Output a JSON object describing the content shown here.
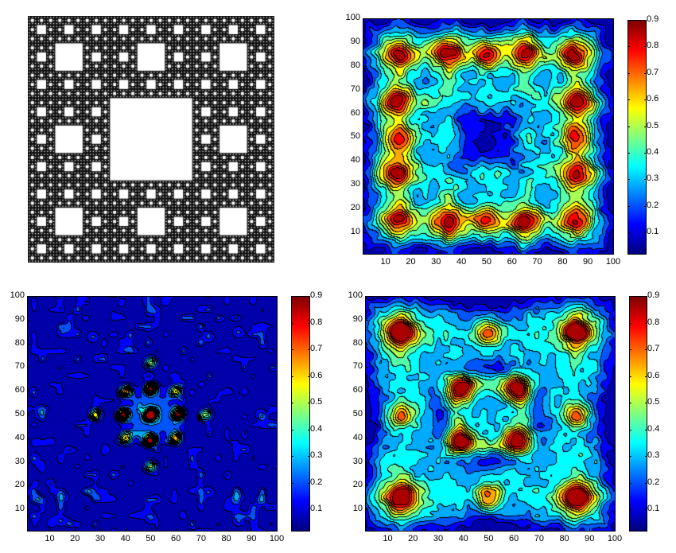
{
  "figure": {
    "layout": "2x2 subplots",
    "panels": [
      {
        "id": "carpet",
        "title": "",
        "type": "image",
        "description": "Sierpinski carpet (level 4), white holes on black"
      },
      {
        "id": "top-right",
        "type": "contourf"
      },
      {
        "id": "bottom-left",
        "type": "contourf"
      },
      {
        "id": "bottom-right",
        "type": "contourf"
      }
    ]
  },
  "axes_common": {
    "xticks": [
      "10",
      "20",
      "30",
      "40",
      "50",
      "60",
      "70",
      "80",
      "90",
      "100"
    ],
    "yticks": [
      "10",
      "20",
      "30",
      "40",
      "50",
      "60",
      "70",
      "80",
      "90",
      "100"
    ],
    "xlim": [
      1,
      100
    ],
    "ylim": [
      1,
      100
    ]
  },
  "colorbar": {
    "ticks": [
      "0.1",
      "0.2",
      "0.3",
      "0.4",
      "0.5",
      "0.6",
      "0.7",
      "0.8",
      "0.9"
    ],
    "range": [
      0.02,
      0.9
    ],
    "colormap": "jet"
  },
  "chart_data": [
    {
      "type": "image",
      "title": "",
      "description": "Sierpinski carpet fractal, 4 levels, black background with white square holes; largest hole central (1/3 width)"
    },
    {
      "type": "heatmap",
      "title": "",
      "xlabel": "",
      "ylabel": "",
      "xlim": [
        1,
        100
      ],
      "ylim": [
        1,
        100
      ],
      "zlim": [
        0.02,
        0.9
      ],
      "colormap": "jet",
      "style": "filled contour with black contour lines",
      "peaks": [
        {
          "x": 15,
          "y": 85,
          "v": 0.82
        },
        {
          "x": 85,
          "y": 85,
          "v": 0.82
        },
        {
          "x": 15,
          "y": 15,
          "v": 0.82
        },
        {
          "x": 85,
          "y": 15,
          "v": 0.82
        },
        {
          "x": 35,
          "y": 86,
          "v": 0.86
        },
        {
          "x": 65,
          "y": 86,
          "v": 0.86
        },
        {
          "x": 35,
          "y": 14,
          "v": 0.86
        },
        {
          "x": 65,
          "y": 14,
          "v": 0.86
        },
        {
          "x": 14,
          "y": 65,
          "v": 0.86
        },
        {
          "x": 14,
          "y": 35,
          "v": 0.86
        },
        {
          "x": 86,
          "y": 65,
          "v": 0.86
        },
        {
          "x": 86,
          "y": 35,
          "v": 0.86
        },
        {
          "x": 50,
          "y": 85,
          "v": 0.72
        },
        {
          "x": 50,
          "y": 15,
          "v": 0.72
        },
        {
          "x": 15,
          "y": 50,
          "v": 0.72
        },
        {
          "x": 85,
          "y": 50,
          "v": 0.72
        }
      ],
      "minimum": {
        "x": 50,
        "y": 50,
        "v": 0.05
      }
    },
    {
      "type": "heatmap",
      "title": "",
      "xlabel": "",
      "ylabel": "",
      "xlim": [
        1,
        100
      ],
      "ylim": [
        1,
        100
      ],
      "zlim": [
        0.02,
        0.9
      ],
      "colormap": "jet",
      "style": "filled contour with black contour lines",
      "peaks": [
        {
          "x": 50,
          "y": 50,
          "v": 0.9
        },
        {
          "x": 39,
          "y": 50,
          "v": 0.85
        },
        {
          "x": 61,
          "y": 50,
          "v": 0.85
        },
        {
          "x": 50,
          "y": 61,
          "v": 0.85
        },
        {
          "x": 50,
          "y": 39,
          "v": 0.85
        },
        {
          "x": 40,
          "y": 60,
          "v": 0.55
        },
        {
          "x": 60,
          "y": 60,
          "v": 0.55
        },
        {
          "x": 40,
          "y": 40,
          "v": 0.55
        },
        {
          "x": 60,
          "y": 40,
          "v": 0.55
        },
        {
          "x": 28,
          "y": 50,
          "v": 0.5
        },
        {
          "x": 72,
          "y": 50,
          "v": 0.5
        },
        {
          "x": 50,
          "y": 72,
          "v": 0.5
        },
        {
          "x": 50,
          "y": 28,
          "v": 0.5
        }
      ],
      "background": 0.05
    },
    {
      "type": "heatmap",
      "title": "",
      "xlabel": "",
      "ylabel": "",
      "xlim": [
        1,
        100
      ],
      "ylim": [
        1,
        100
      ],
      "zlim": [
        0.02,
        0.9
      ],
      "colormap": "jet",
      "style": "filled contour with black contour lines",
      "peaks": [
        {
          "x": 15,
          "y": 85,
          "v": 0.78
        },
        {
          "x": 85,
          "y": 85,
          "v": 0.78
        },
        {
          "x": 15,
          "y": 15,
          "v": 0.78
        },
        {
          "x": 85,
          "y": 15,
          "v": 0.82
        },
        {
          "x": 50,
          "y": 85,
          "v": 0.75
        },
        {
          "x": 50,
          "y": 15,
          "v": 0.75
        },
        {
          "x": 15,
          "y": 50,
          "v": 0.75
        },
        {
          "x": 85,
          "y": 50,
          "v": 0.75
        },
        {
          "x": 39,
          "y": 61,
          "v": 0.88
        },
        {
          "x": 61,
          "y": 61,
          "v": 0.88
        },
        {
          "x": 39,
          "y": 39,
          "v": 0.88
        },
        {
          "x": 61,
          "y": 39,
          "v": 0.88
        }
      ],
      "minimum": {
        "x": 50,
        "y": 50,
        "v": 0.3
      }
    }
  ]
}
